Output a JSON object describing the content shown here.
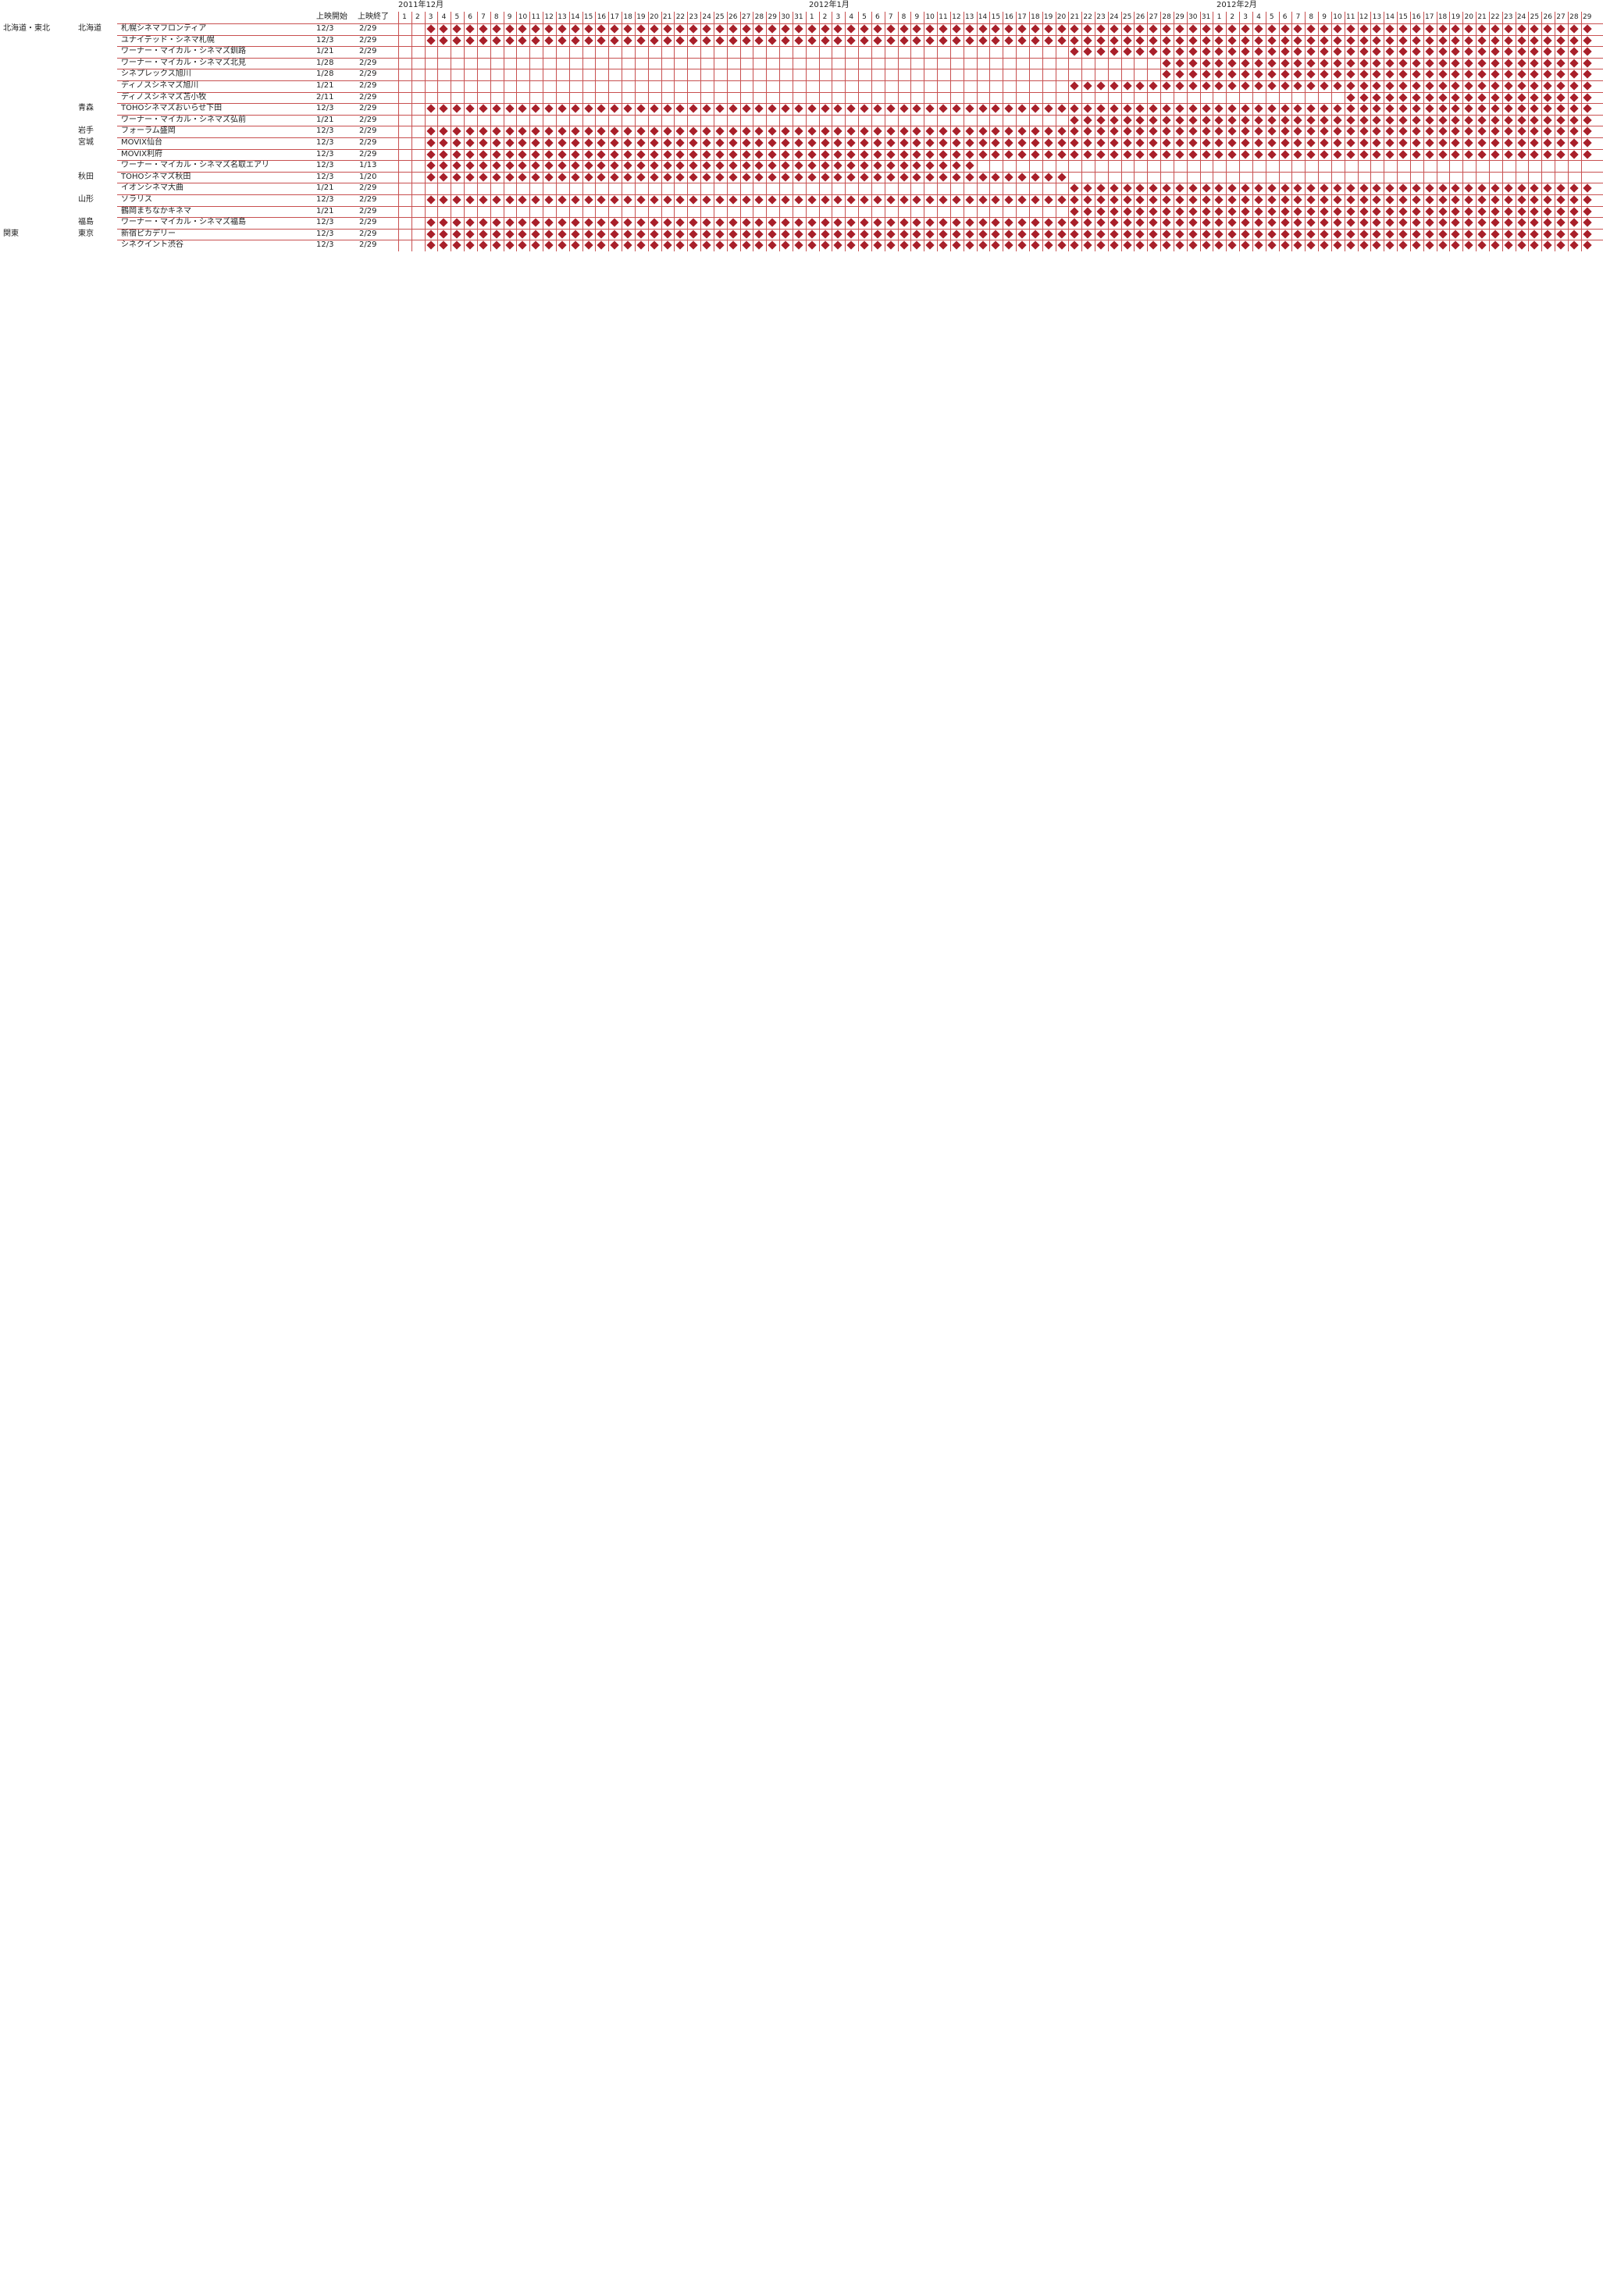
{
  "header": {
    "start_label": "上映開始",
    "end_label": "上映終了",
    "months": [
      "2011年12月",
      "2012年1月",
      "2012年2月"
    ],
    "month_days": [
      31,
      31,
      29
    ]
  },
  "rows": [
    {
      "region": "北海道・東北",
      "pref": "北海道",
      "theater": "札幌シネマフロンティア",
      "start": "12/3",
      "end": "2/29"
    },
    {
      "region": "",
      "pref": "",
      "theater": "ユナイテッド・シネマ札幌",
      "start": "12/3",
      "end": "2/29"
    },
    {
      "region": "",
      "pref": "",
      "theater": "ワーナー・マイカル・シネマズ釧路",
      "start": "1/21",
      "end": "2/29"
    },
    {
      "region": "",
      "pref": "",
      "theater": "ワーナー・マイカル・シネマズ北見",
      "start": "1/28",
      "end": "2/29"
    },
    {
      "region": "",
      "pref": "",
      "theater": "シネプレックス旭川",
      "start": "1/28",
      "end": "2/29"
    },
    {
      "region": "",
      "pref": "",
      "theater": "ディノスシネマズ旭川",
      "start": "1/21",
      "end": "2/29"
    },
    {
      "region": "",
      "pref": "",
      "theater": "ディノスシネマズ苫小牧",
      "start": "2/11",
      "end": "2/29"
    },
    {
      "region": "",
      "pref": "青森",
      "theater": "TOHOシネマズおいらせ下田",
      "start": "12/3",
      "end": "2/29"
    },
    {
      "region": "",
      "pref": "",
      "theater": "ワーナー・マイカル・シネマズ弘前",
      "start": "1/21",
      "end": "2/29"
    },
    {
      "region": "",
      "pref": "岩手",
      "theater": "フォーラム盛岡",
      "start": "12/3",
      "end": "2/29"
    },
    {
      "region": "",
      "pref": "宮城",
      "theater": "MOVIX仙台",
      "start": "12/3",
      "end": "2/29"
    },
    {
      "region": "",
      "pref": "",
      "theater": "MOVIX利府",
      "start": "12/3",
      "end": "2/29"
    },
    {
      "region": "",
      "pref": "",
      "theater": "ワーナー・マイカル・シネマズ名取エアリ",
      "start": "12/3",
      "end": "1/13"
    },
    {
      "region": "",
      "pref": "秋田",
      "theater": "TOHOシネマズ秋田",
      "start": "12/3",
      "end": "1/20"
    },
    {
      "region": "",
      "pref": "",
      "theater": "イオンシネマ大曲",
      "start": "1/21",
      "end": "2/29"
    },
    {
      "region": "",
      "pref": "山形",
      "theater": "ソラリス",
      "start": "12/3",
      "end": "2/29"
    },
    {
      "region": "",
      "pref": "",
      "theater": "鶴岡まちなかキネマ",
      "start": "1/21",
      "end": "2/29"
    },
    {
      "region": "",
      "pref": "福島",
      "theater": "ワーナー・マイカル・シネマズ福島",
      "start": "12/3",
      "end": "2/29"
    },
    {
      "region": "関東",
      "pref": "東京",
      "theater": "新宿ピカデリー",
      "start": "12/3",
      "end": "2/29"
    },
    {
      "region": "",
      "pref": "",
      "theater": "シネクイント渋谷",
      "start": "12/3",
      "end": "2/29"
    }
  ],
  "colors": {
    "marker": "#a8202a",
    "grid": "#c85050",
    "band": "#8c8c8c"
  }
}
